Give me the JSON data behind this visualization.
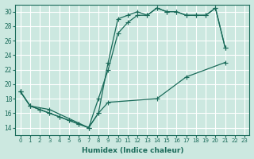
{
  "xlabel": "Humidex (Indice chaleur)",
  "xlim": [
    -0.5,
    23.5
  ],
  "ylim": [
    13,
    31
  ],
  "yticks": [
    14,
    16,
    18,
    20,
    22,
    24,
    26,
    28,
    30
  ],
  "xticks": [
    0,
    1,
    2,
    3,
    4,
    5,
    6,
    7,
    8,
    9,
    10,
    11,
    12,
    13,
    14,
    15,
    16,
    17,
    18,
    19,
    20,
    21,
    22,
    23
  ],
  "bg_color": "#cce8e0",
  "line_color": "#1a6b5a",
  "grid_color": "#ffffff",
  "line1_x": [
    0,
    1,
    2,
    3,
    4,
    5,
    6,
    7,
    8,
    9,
    10,
    11,
    12,
    13,
    14,
    15,
    16,
    17,
    18,
    19,
    20,
    21
  ],
  "line1_y": [
    19,
    17,
    16.5,
    16,
    15.5,
    15,
    14.5,
    14,
    16,
    23,
    29,
    29.5,
    30,
    29.5,
    30.5,
    30,
    30,
    29.5,
    29.5,
    29.5,
    30.5,
    25
  ],
  "line2_x": [
    0,
    1,
    2,
    3,
    4,
    5,
    6,
    7,
    8,
    9,
    10,
    11,
    12,
    13,
    14,
    15,
    16,
    17,
    18,
    19,
    20,
    21
  ],
  "line2_y": [
    19,
    17,
    16.5,
    16,
    15.5,
    15,
    14.5,
    14,
    18,
    22,
    27,
    28.5,
    29.5,
    29.5,
    30.5,
    30,
    30,
    29.5,
    29.5,
    29.5,
    30.5,
    25
  ],
  "line3_x": [
    0,
    1,
    3,
    7,
    8,
    9,
    14,
    17,
    21
  ],
  "line3_y": [
    19,
    17,
    16.5,
    14,
    16,
    17.5,
    18,
    21,
    23
  ]
}
